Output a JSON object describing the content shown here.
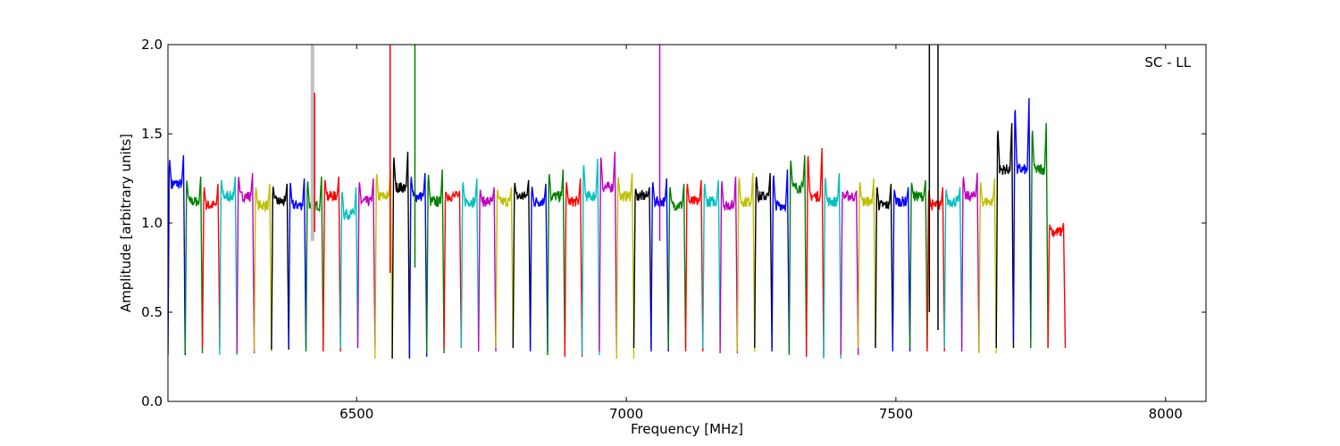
{
  "chart_data": {
    "type": "line",
    "title": "",
    "annotation": "SC - LL",
    "xlabel": "Frequency [MHz]",
    "ylabel": "Amplitude [arbitrary units]",
    "xlim": [
      6150,
      8075
    ],
    "ylim": [
      0.0,
      2.0
    ],
    "x_ticks": [
      6500,
      7000,
      7500,
      8000
    ],
    "x_tick_labels": [
      "6500",
      "7000",
      "7500",
      "8000"
    ],
    "y_ticks": [
      0.0,
      0.5,
      1.0,
      1.5,
      2.0
    ],
    "y_tick_labels": [
      "0.0",
      "0.5",
      "1.0",
      "1.5",
      "2.0"
    ],
    "grid": false,
    "legend": "none",
    "channel_width_mhz": 32,
    "first_channel_start_mhz": 6150,
    "background_series_color": "#c0c0c0",
    "color_cycle": [
      "#0000ff",
      "#008000",
      "#ff0000",
      "#00bfbf",
      "#bf00bf",
      "#bfbf00",
      "#000000"
    ],
    "channel_peaks": [
      1.38,
      1.26,
      1.22,
      1.26,
      1.28,
      1.22,
      1.22,
      1.25,
      1.26,
      1.26,
      1.2,
      1.25,
      1.3,
      1.4,
      1.28,
      1.3,
      1.18,
      1.25,
      1.2,
      1.2,
      1.24,
      1.22,
      1.3,
      1.25,
      1.36,
      1.4,
      1.28,
      1.2,
      1.25,
      1.22,
      1.24,
      1.24,
      1.26,
      1.28,
      1.28,
      1.3,
      1.38,
      1.42,
      1.28,
      1.18,
      1.25,
      1.22,
      1.2,
      1.24,
      1.2,
      1.2,
      1.28,
      1.25,
      1.56,
      1.7,
      1.56,
      1.0
    ],
    "channel_centers": [
      1.22,
      1.12,
      1.1,
      1.15,
      1.15,
      1.1,
      1.12,
      1.1,
      1.1,
      1.15,
      1.05,
      1.12,
      1.15,
      1.2,
      1.15,
      1.12,
      1.15,
      1.12,
      1.12,
      1.12,
      1.15,
      1.12,
      1.15,
      1.12,
      1.15,
      1.2,
      1.15,
      1.15,
      1.12,
      1.1,
      1.12,
      1.12,
      1.1,
      1.12,
      1.15,
      1.1,
      1.2,
      1.15,
      1.12,
      1.15,
      1.12,
      1.1,
      1.12,
      1.15,
      1.1,
      1.12,
      1.15,
      1.12,
      1.3,
      1.3,
      1.3,
      0.95
    ],
    "channel_minima": [
      0.26,
      0.27,
      0.3,
      0.26,
      0.27,
      0.28,
      0.29,
      0.3,
      0.28,
      0.28,
      0.3,
      0.3,
      0.24,
      0.24,
      0.25,
      0.27,
      0.3,
      0.3,
      0.28,
      0.3,
      0.3,
      0.28,
      0.26,
      0.25,
      0.26,
      0.28,
      0.24,
      0.3,
      0.28,
      0.3,
      0.28,
      0.3,
      0.27,
      0.28,
      0.3,
      0.28,
      0.26,
      0.25,
      0.24,
      0.26,
      0.3,
      0.3,
      0.28,
      0.3,
      0.28,
      0.3,
      0.28,
      0.27,
      0.3,
      0.34,
      0.3,
      0.3
    ],
    "spikes": [
      {
        "x": 6418,
        "y_top": 2.0,
        "y_bottom": 0.9,
        "color": "#c0c0c0",
        "label_color_name": "gray"
      },
      {
        "x": 6422,
        "y_top": 1.73,
        "y_bottom": 0.95,
        "color": "#ff0000"
      },
      {
        "x": 6562,
        "y_top": 2.0,
        "y_bottom": 0.72,
        "color": "#ff0000"
      },
      {
        "x": 6608,
        "y_top": 2.0,
        "y_bottom": 0.75,
        "color": "#008000"
      },
      {
        "x": 7062,
        "y_top": 2.0,
        "y_bottom": 0.9,
        "color": "#bf00bf"
      },
      {
        "x": 7562,
        "y_top": 2.0,
        "y_bottom": 0.5,
        "color": "#000000"
      },
      {
        "x": 7578,
        "y_top": 2.0,
        "y_bottom": 0.4,
        "color": "#000000"
      }
    ]
  }
}
